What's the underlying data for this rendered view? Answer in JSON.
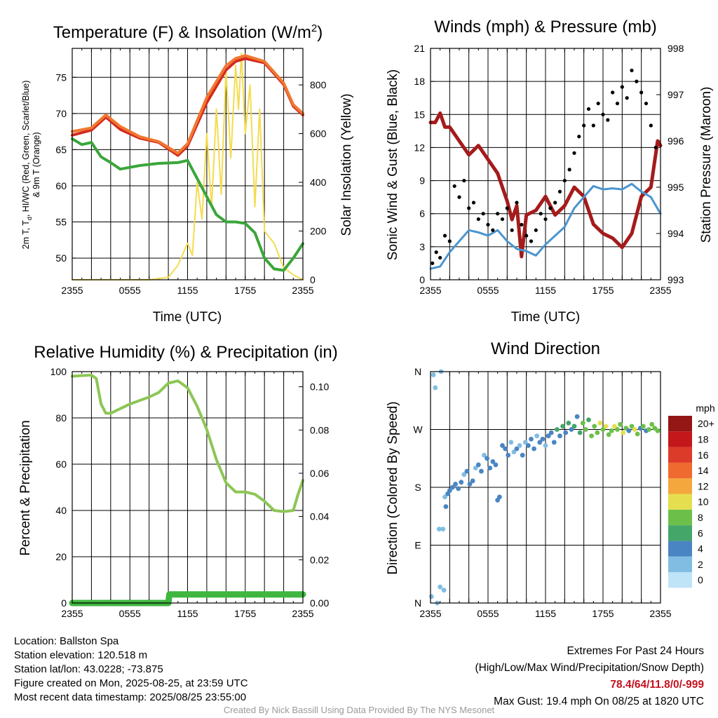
{
  "panels": {
    "temp": {
      "title_main": "Temperature (F) & Insolation (W/m",
      "title_sup": "2",
      "title_close": ")",
      "xlabel": "Time (UTC)",
      "ylabel_left_line1": "2m T, T",
      "ylabel_left_sub": "d",
      "ylabel_left_rest": ", HI/WC (Red, Green, Scarlet/Blue)",
      "ylabel_left_line2": "& 9m T (Orange)",
      "ylabel_right": "Solar Insolation (Yellow)"
    },
    "wind": {
      "title": "Winds (mph) & Pressure (mb)",
      "xlabel": "Time (UTC)",
      "ylabel_left": "Sonic Wind & Gust (Blue, Black)",
      "ylabel_right": "Station Pressure (Maroon)"
    },
    "rh": {
      "title": "Relative Humidity (%) & Precipitation (in)",
      "ylabel_left": "Percent & Precipitation"
    },
    "dir": {
      "title": "Wind Direction",
      "ylabel_left": "Direction (Colored By Speed)",
      "colorbar_title": "mph"
    }
  },
  "chart_data": [
    {
      "id": "temperature",
      "type": "line",
      "x_ticks": [
        "2355",
        "0555",
        "1155",
        "1755",
        "2355"
      ],
      "y_left_ticks": [
        50,
        55,
        60,
        65,
        70,
        75
      ],
      "y_left_range": [
        47,
        79
      ],
      "y_right_ticks": [
        0,
        200,
        400,
        600,
        800
      ],
      "y_right_range": [
        0,
        950
      ],
      "series": [
        {
          "name": "2m T",
          "color": "#d42a1f",
          "axis": "left",
          "x": [
            0,
            2,
            3.5,
            5,
            7,
            9,
            11,
            12,
            14,
            16,
            17,
            18,
            19,
            20,
            21,
            22,
            23,
            24
          ],
          "y": [
            67,
            67.7,
            69.5,
            67.8,
            66.6,
            66,
            64.2,
            65.5,
            71.5,
            76,
            77.2,
            77.6,
            77.3,
            77,
            75.5,
            74,
            71,
            69.8
          ]
        },
        {
          "name": "9m T",
          "color": "#f07830",
          "axis": "left",
          "x": [
            0,
            2,
            3.5,
            5,
            7,
            9,
            11,
            12,
            14,
            16,
            17,
            18,
            19,
            20,
            21,
            22,
            23,
            24
          ],
          "y": [
            67.5,
            68,
            69.8,
            68.2,
            66.8,
            66.1,
            64.5,
            65.8,
            72.2,
            76.6,
            77.6,
            78,
            77.6,
            77.2,
            75.7,
            74.2,
            71.2,
            70
          ]
        },
        {
          "name": "Td",
          "color": "#3aa63a",
          "axis": "left",
          "x": [
            0,
            1,
            2,
            3,
            4,
            5,
            7,
            9,
            11,
            12,
            13,
            14,
            15,
            16,
            17,
            18,
            19,
            20,
            21,
            22,
            23,
            24
          ],
          "y": [
            66.5,
            65.7,
            66,
            64,
            63.2,
            62.3,
            62.8,
            63.1,
            63.2,
            63.5,
            61,
            58.5,
            56,
            55,
            55,
            54.8,
            53.5,
            50,
            48.5,
            48.3,
            50,
            52
          ]
        },
        {
          "name": "Insolation",
          "color": "#f4dc50",
          "axis": "right",
          "x": [
            0,
            8,
            10,
            11,
            12,
            12.5,
            13,
            13.5,
            14,
            14.5,
            15,
            15.5,
            16,
            16.5,
            17,
            17.3,
            17.6,
            18,
            18.5,
            19,
            19.5,
            20,
            21,
            22,
            23,
            24
          ],
          "y": [
            0,
            0,
            10,
            60,
            150,
            100,
            400,
            250,
            600,
            300,
            700,
            350,
            860,
            500,
            880,
            700,
            930,
            600,
            800,
            300,
            700,
            200,
            150,
            50,
            20,
            0
          ]
        }
      ]
    },
    {
      "id": "winds",
      "type": "line",
      "x_ticks": [
        "2355",
        "0555",
        "1155",
        "1755",
        "2355"
      ],
      "y_left_ticks": [
        0,
        3,
        6,
        9,
        12,
        15,
        18,
        21
      ],
      "y_left_range": [
        0,
        21
      ],
      "y_right_ticks": [
        993,
        994,
        995,
        996,
        997,
        998
      ],
      "y_right_range": [
        993,
        998
      ],
      "series": [
        {
          "name": "Sonic Wind",
          "color": "#4a95d0",
          "axis": "left",
          "x": [
            0,
            1,
            2,
            3,
            4,
            5,
            6,
            7,
            8,
            9,
            10,
            11,
            12,
            13,
            14,
            15,
            16,
            17,
            18,
            19,
            20,
            21,
            22,
            23,
            24
          ],
          "y": [
            1,
            1.2,
            2.5,
            3.5,
            4.5,
            4.3,
            4,
            4.5,
            3.5,
            2.8,
            2.6,
            2.2,
            3.2,
            4,
            4.8,
            6.5,
            7.5,
            8.5,
            8.2,
            8.3,
            8.2,
            8.7,
            8,
            7.5,
            6
          ]
        },
        {
          "name": "Gust",
          "color": "#000000",
          "axis": "left",
          "style": "dots",
          "x": [
            0.2,
            0.6,
            1,
            1.5,
            2,
            2.5,
            3,
            3.5,
            4,
            4.5,
            5,
            5.5,
            6,
            6.5,
            7,
            7.5,
            8,
            8.5,
            9,
            9.5,
            10,
            10.5,
            11,
            11.5,
            12,
            12.5,
            13,
            13.5,
            14,
            14.5,
            15,
            15.5,
            16,
            16.5,
            17,
            17.5,
            18,
            18.5,
            19,
            19.5,
            20,
            20.5,
            21,
            21.5,
            22,
            22.5,
            23,
            23.5
          ],
          "y": [
            1.5,
            2.5,
            2,
            4,
            3.5,
            8.5,
            7.5,
            9,
            6.5,
            7,
            5.5,
            6,
            5,
            4.5,
            6,
            5.5,
            6.5,
            4.5,
            7,
            5,
            4,
            3.5,
            4.5,
            6,
            5.5,
            6.5,
            7,
            8,
            9,
            10,
            11.5,
            13,
            14,
            15.5,
            14,
            16,
            15,
            14.5,
            17,
            16,
            17.5,
            16.5,
            19,
            18,
            17,
            16,
            14,
            12
          ]
        },
        {
          "name": "Station Pressure",
          "color": "#a51b1b",
          "axis": "right",
          "x": [
            0,
            0.5,
            1,
            1.5,
            2,
            3,
            4,
            5,
            6,
            7,
            8,
            8.5,
            9,
            9.5,
            10,
            11,
            12,
            13,
            14,
            15,
            16,
            17,
            18,
            19,
            20,
            21,
            22,
            23,
            23.7,
            24
          ],
          "y": [
            996.4,
            996.4,
            996.6,
            996.3,
            996.3,
            996,
            995.7,
            995.9,
            995.6,
            995.3,
            994.7,
            994.3,
            994.6,
            993.5,
            994.4,
            994.5,
            994.8,
            994.4,
            994.6,
            995,
            994.8,
            994.2,
            994,
            993.9,
            993.7,
            994,
            994.8,
            995,
            996,
            995.9
          ]
        }
      ]
    },
    {
      "id": "humidity_precip",
      "type": "line",
      "x_ticks": [
        "2355",
        "0555",
        "1155",
        "1755",
        "2355"
      ],
      "y_left_ticks": [
        0,
        20,
        40,
        60,
        80,
        100
      ],
      "y_left_range": [
        0,
        100
      ],
      "y_right_ticks": [
        "0.00",
        "0.02",
        "0.04",
        "0.06",
        "0.08",
        "0.10"
      ],
      "y_right_range": [
        0,
        0.107
      ],
      "series": [
        {
          "name": "Relative Humidity",
          "color": "#8dc655",
          "axis": "left",
          "x": [
            0,
            1,
            2,
            2.5,
            3,
            3.5,
            4,
            6,
            8,
            9,
            10,
            11,
            12,
            13,
            14,
            15,
            16,
            17,
            18,
            19,
            20,
            21,
            22,
            23,
            23.5,
            24
          ],
          "y": [
            98,
            98.3,
            98.5,
            97,
            86,
            82,
            82,
            86,
            89,
            91,
            95,
            96,
            93,
            85,
            75,
            62,
            52,
            48,
            48,
            47,
            44,
            40,
            39.5,
            40,
            47,
            53
          ]
        },
        {
          "name": "Precipitation",
          "color": "#3fb63f",
          "axis": "right",
          "x": [
            0,
            10,
            10.1,
            24
          ],
          "y": [
            0,
            0,
            0.004,
            0.004
          ]
        }
      ]
    },
    {
      "id": "wind_direction",
      "type": "scatter",
      "x_ticks": [
        "2355",
        "0555",
        "1155",
        "1755",
        "2355"
      ],
      "y_ticks": [
        "N",
        "E",
        "S",
        "W",
        "N"
      ],
      "y_range": [
        0,
        360
      ],
      "colorbar_labels": [
        "0",
        "2",
        "4",
        "6",
        "8",
        "10",
        "12",
        "14",
        "16",
        "18",
        "20+"
      ],
      "colorbar_colors": [
        "#bfe3f7",
        "#81bde3",
        "#4a85c3",
        "#45a66a",
        "#6cc04a",
        "#e5df4f",
        "#f4a73d",
        "#ef6a2f",
        "#dd3b29",
        "#c4171c",
        "#941715"
      ],
      "points": [
        {
          "x": 0.1,
          "dir": 10,
          "speed": 1
        },
        {
          "x": 0.3,
          "dir": 355,
          "speed": 1
        },
        {
          "x": 0.5,
          "dir": 335,
          "speed": 2
        },
        {
          "x": 0.7,
          "dir": 0,
          "speed": 1
        },
        {
          "x": 0.9,
          "dir": 115,
          "speed": 1
        },
        {
          "x": 1.0,
          "dir": 25,
          "speed": 1
        },
        {
          "x": 1.1,
          "dir": 360,
          "speed": 1
        },
        {
          "x": 1.3,
          "dir": 115,
          "speed": 1
        },
        {
          "x": 1.4,
          "dir": 20,
          "speed": 1
        },
        {
          "x": 1.5,
          "dir": 165,
          "speed": 2
        },
        {
          "x": 1.6,
          "dir": 150,
          "speed": 3
        },
        {
          "x": 1.8,
          "dir": 170,
          "speed": 3
        },
        {
          "x": 2.0,
          "dir": 175,
          "speed": 4
        },
        {
          "x": 2.3,
          "dir": 180,
          "speed": 4
        },
        {
          "x": 2.6,
          "dir": 185,
          "speed": 4
        },
        {
          "x": 2.9,
          "dir": 178,
          "speed": 4
        },
        {
          "x": 3.2,
          "dir": 188,
          "speed": 4
        },
        {
          "x": 3.5,
          "dir": 200,
          "speed": 2
        },
        {
          "x": 3.8,
          "dir": 205,
          "speed": 4
        },
        {
          "x": 4.1,
          "dir": 185,
          "speed": 4
        },
        {
          "x": 4.4,
          "dir": 190,
          "speed": 4
        },
        {
          "x": 4.7,
          "dir": 210,
          "speed": 2
        },
        {
          "x": 5.0,
          "dir": 215,
          "speed": 3
        },
        {
          "x": 5.3,
          "dir": 205,
          "speed": 4
        },
        {
          "x": 5.6,
          "dir": 230,
          "speed": 2
        },
        {
          "x": 5.9,
          "dir": 225,
          "speed": 4
        },
        {
          "x": 6.2,
          "dir": 210,
          "speed": 3
        },
        {
          "x": 6.5,
          "dir": 220,
          "speed": 4
        },
        {
          "x": 6.8,
          "dir": 215,
          "speed": 3
        },
        {
          "x": 7.0,
          "dir": 160,
          "speed": 4
        },
        {
          "x": 7.2,
          "dir": 165,
          "speed": 4
        },
        {
          "x": 7.5,
          "dir": 245,
          "speed": 4
        },
        {
          "x": 7.8,
          "dir": 240,
          "speed": 4
        },
        {
          "x": 8.1,
          "dir": 230,
          "speed": 3
        },
        {
          "x": 8.4,
          "dir": 250,
          "speed": 2
        },
        {
          "x": 8.7,
          "dir": 235,
          "speed": 2
        },
        {
          "x": 9.0,
          "dir": 240,
          "speed": 4
        },
        {
          "x": 9.3,
          "dir": 245,
          "speed": 2
        },
        {
          "x": 9.6,
          "dir": 230,
          "speed": 4
        },
        {
          "x": 9.9,
          "dir": 250,
          "speed": 2
        },
        {
          "x": 10.2,
          "dir": 245,
          "speed": 4
        },
        {
          "x": 10.5,
          "dir": 255,
          "speed": 4
        },
        {
          "x": 10.8,
          "dir": 240,
          "speed": 4
        },
        {
          "x": 11.1,
          "dir": 260,
          "speed": 2
        },
        {
          "x": 11.4,
          "dir": 250,
          "speed": 4
        },
        {
          "x": 11.7,
          "dir": 255,
          "speed": 4
        },
        {
          "x": 12.0,
          "dir": 245,
          "speed": 2
        },
        {
          "x": 12.3,
          "dir": 260,
          "speed": 4
        },
        {
          "x": 12.6,
          "dir": 265,
          "speed": 4
        },
        {
          "x": 12.9,
          "dir": 250,
          "speed": 4
        },
        {
          "x": 13.2,
          "dir": 270,
          "speed": 6
        },
        {
          "x": 13.5,
          "dir": 260,
          "speed": 4
        },
        {
          "x": 13.8,
          "dir": 275,
          "speed": 6
        },
        {
          "x": 14.1,
          "dir": 265,
          "speed": 4
        },
        {
          "x": 14.4,
          "dir": 280,
          "speed": 6
        },
        {
          "x": 14.7,
          "dir": 270,
          "speed": 4
        },
        {
          "x": 15.0,
          "dir": 275,
          "speed": 6
        },
        {
          "x": 15.3,
          "dir": 290,
          "speed": 4
        },
        {
          "x": 15.6,
          "dir": 265,
          "speed": 6
        },
        {
          "x": 15.9,
          "dir": 280,
          "speed": 7
        },
        {
          "x": 16.2,
          "dir": 270,
          "speed": 7
        },
        {
          "x": 16.5,
          "dir": 285,
          "speed": 6
        },
        {
          "x": 16.8,
          "dir": 260,
          "speed": 7
        },
        {
          "x": 17.1,
          "dir": 275,
          "speed": 7
        },
        {
          "x": 17.4,
          "dir": 265,
          "speed": 7
        },
        {
          "x": 17.7,
          "dir": 280,
          "speed": 9
        },
        {
          "x": 18.0,
          "dir": 270,
          "speed": 7
        },
        {
          "x": 18.3,
          "dir": 275,
          "speed": 9
        },
        {
          "x": 18.6,
          "dir": 262,
          "speed": 7
        },
        {
          "x": 18.9,
          "dir": 268,
          "speed": 7
        },
        {
          "x": 19.2,
          "dir": 275,
          "speed": 9
        },
        {
          "x": 19.5,
          "dir": 270,
          "speed": 7
        },
        {
          "x": 19.8,
          "dir": 278,
          "speed": 7
        },
        {
          "x": 20.1,
          "dir": 265,
          "speed": 9
        },
        {
          "x": 20.4,
          "dir": 272,
          "speed": 7
        },
        {
          "x": 20.7,
          "dir": 268,
          "speed": 4
        },
        {
          "x": 21.0,
          "dir": 275,
          "speed": 7
        },
        {
          "x": 21.3,
          "dir": 270,
          "speed": 9
        },
        {
          "x": 21.6,
          "dir": 263,
          "speed": 7
        },
        {
          "x": 21.9,
          "dir": 272,
          "speed": 4
        },
        {
          "x": 22.2,
          "dir": 275,
          "speed": 7
        },
        {
          "x": 22.5,
          "dir": 268,
          "speed": 4
        },
        {
          "x": 22.8,
          "dir": 270,
          "speed": 7
        },
        {
          "x": 23.1,
          "dir": 278,
          "speed": 8
        },
        {
          "x": 23.4,
          "dir": 272,
          "speed": 7
        },
        {
          "x": 23.7,
          "dir": 268,
          "speed": 7
        }
      ]
    }
  ],
  "footer": {
    "location": "Location: Ballston Spa",
    "elevation": "Station elevation: 120.518 m",
    "latlon": "Station lat/lon: 43.0228; -73.875",
    "created": "Figure created on Mon, 2025-08-25, at 23:59 UTC",
    "recent": "Most recent data timestamp: 2025/08/25 23:55:00",
    "extremes_title": "Extremes For Past 24 Hours",
    "extremes_legend": "(High/Low/Max Wind/Precipitation/Snow Depth)",
    "extremes_values": "78.4/64/11.8/0/-999",
    "max_gust": "Max Gust: 19.4 mph On 08/25 at 1820 UTC",
    "credit": "Created By Nick Bassill Using Data Provided By The NYS Mesonet"
  }
}
